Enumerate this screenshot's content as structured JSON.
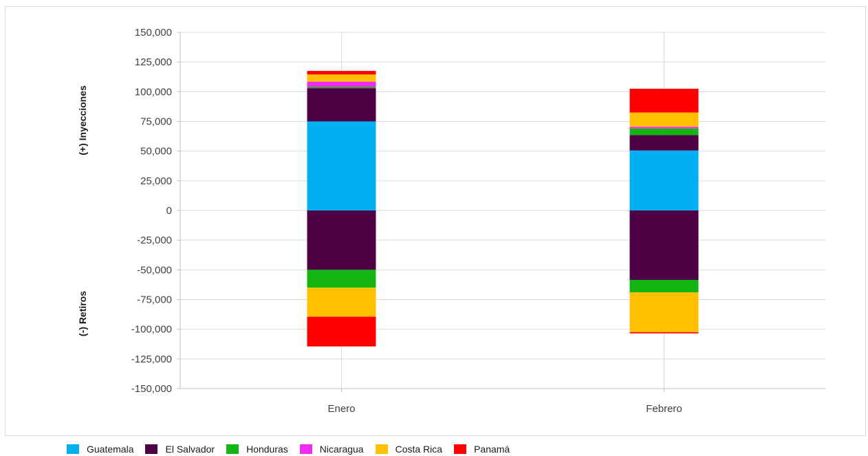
{
  "chart_data": {
    "type": "bar",
    "stacked": true,
    "categories": [
      "Enero",
      "Febrero"
    ],
    "ylabel_top": "(+) Inyecciones",
    "ylabel_bottom": "(-) Retiros",
    "ylim": [
      -150000,
      150000
    ],
    "yticks": [
      150000,
      125000,
      100000,
      75000,
      50000,
      25000,
      0,
      -25000,
      -50000,
      -75000,
      -100000,
      -125000,
      -150000
    ],
    "ytick_labels": [
      "150,000",
      "125,000",
      "100,000",
      "75,000",
      "50,000",
      "25,000",
      "0",
      "-25,000",
      "-50,000",
      "-75,000",
      "-100,000",
      "-125,000",
      "-150,000"
    ],
    "grid": true,
    "legend_position": "bottom",
    "series": [
      {
        "name": "Guatemala",
        "color": "#00b0f0",
        "positive": [
          75000,
          50500
        ],
        "negative": [
          0,
          0
        ]
      },
      {
        "name": "El Salvador",
        "color": "#4e0044",
        "positive": [
          28000,
          13000
        ],
        "negative": [
          -50000,
          -58500
        ]
      },
      {
        "name": "Honduras",
        "color": "#13b513",
        "positive": [
          1000,
          5500
        ],
        "negative": [
          -15000,
          -10500
        ]
      },
      {
        "name": "Nicaragua",
        "color": "#f02cf0",
        "positive": [
          4500,
          1500
        ],
        "negative": [
          0,
          0
        ]
      },
      {
        "name": "Costa Rica",
        "color": "#ffc000",
        "positive": [
          6000,
          12000
        ],
        "negative": [
          -24500,
          -33500
        ]
      },
      {
        "name": "Panamá",
        "color": "#ff0000",
        "positive": [
          3000,
          20000
        ],
        "negative": [
          -25000,
          -1000
        ]
      }
    ]
  }
}
